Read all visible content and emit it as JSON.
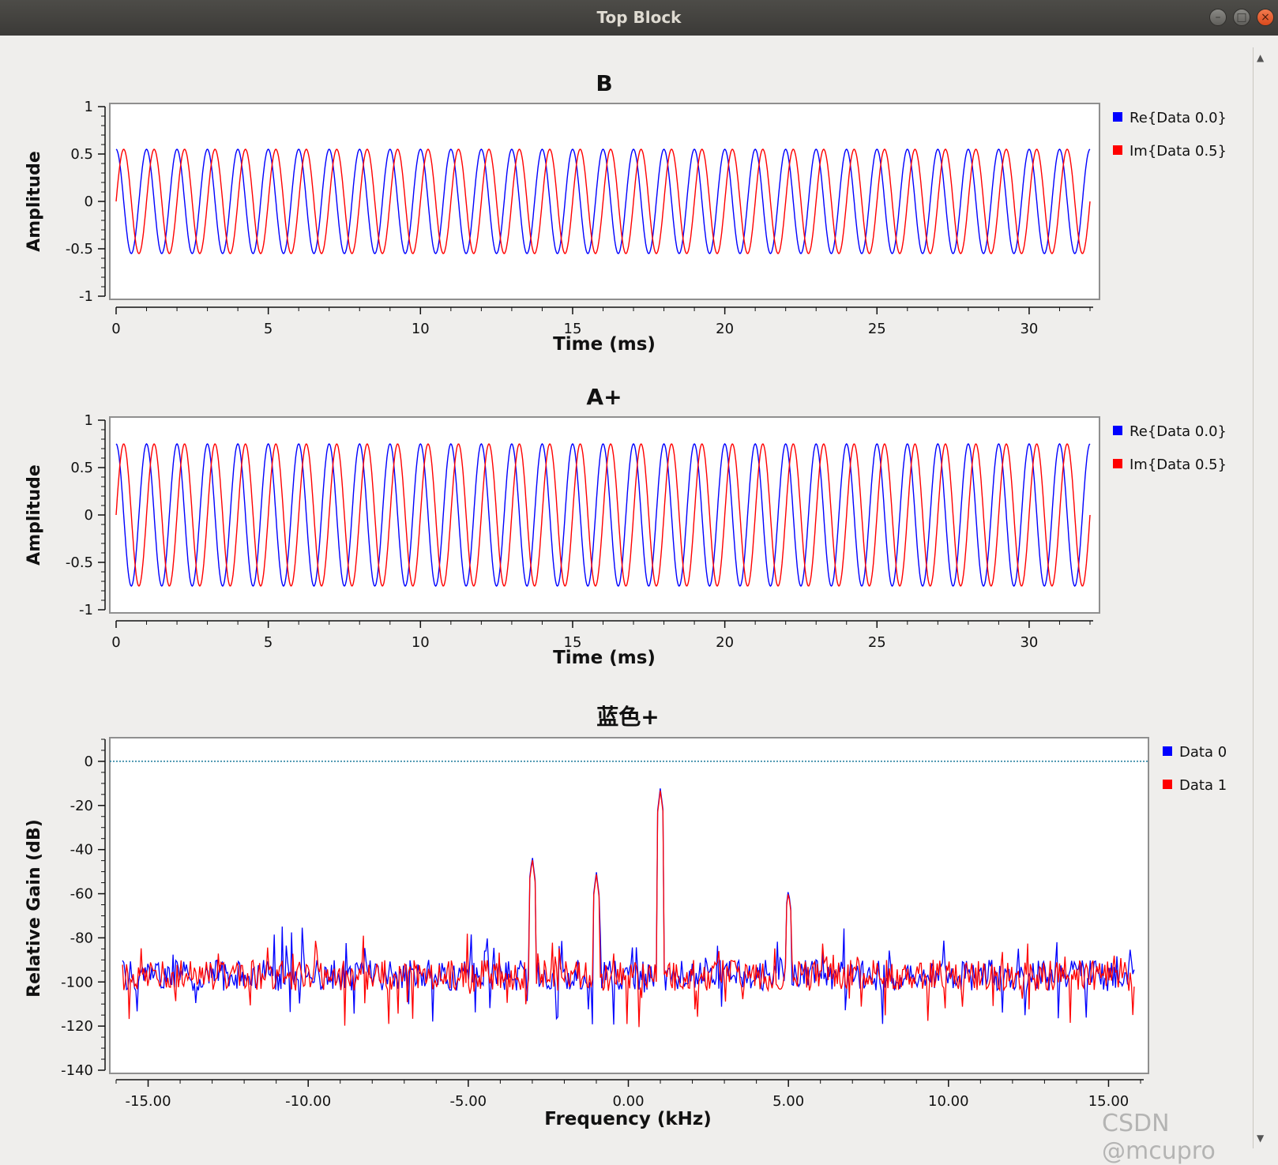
{
  "window": {
    "title": "Top Block"
  },
  "watermark": "CSDN @mcupro",
  "plots": [
    {
      "title": "B",
      "ylabel": "Amplitude",
      "xlabel": "Time (ms)",
      "yticks": [
        "1",
        "0.5",
        "0",
        "-0.5",
        "-1"
      ],
      "xticks": [
        "0",
        "5",
        "10",
        "15",
        "20",
        "25",
        "30"
      ],
      "legend": [
        "Re{Data 0.0}",
        "Im{Data 0.5}"
      ]
    },
    {
      "title": "A+",
      "ylabel": "Amplitude",
      "xlabel": "Time (ms)",
      "yticks": [
        "1",
        "0.5",
        "0",
        "-0.5",
        "-1"
      ],
      "xticks": [
        "0",
        "5",
        "10",
        "15",
        "20",
        "25",
        "30"
      ],
      "legend": [
        "Re{Data 0.0}",
        "Im{Data 0.5}"
      ]
    },
    {
      "title": "蓝色+",
      "ylabel": "Relative Gain (dB)",
      "xlabel": "Frequency (kHz)",
      "yticks": [
        "0",
        "-20",
        "-40",
        "-60",
        "-80",
        "-100",
        "-120",
        "-140"
      ],
      "xticks": [
        "-15.00",
        "-10.00",
        "-5.00",
        "0.00",
        "5.00",
        "10.00",
        "15.00"
      ],
      "legend": [
        "Data 0",
        "Data 1"
      ]
    }
  ],
  "chart_data": [
    {
      "type": "line",
      "title": "B",
      "xlabel": "Time (ms)",
      "ylabel": "Amplitude",
      "xlim": [
        0,
        32
      ],
      "ylim": [
        -1,
        1
      ],
      "grid": false,
      "legend_position": "right",
      "signal": {
        "frequency_khz": 1.0,
        "amplitude": 0.55
      },
      "series": [
        {
          "name": "Re{Data 0.0}",
          "color": "#0000ff",
          "kind": "cos",
          "phase_deg": 0
        },
        {
          "name": "Im{Data 0.5}",
          "color": "#ff0000",
          "kind": "sin",
          "phase_deg": 0
        }
      ]
    },
    {
      "type": "line",
      "title": "A+",
      "xlabel": "Time (ms)",
      "ylabel": "Amplitude",
      "xlim": [
        0,
        32
      ],
      "ylim": [
        -1,
        1
      ],
      "grid": false,
      "legend_position": "right",
      "signal": {
        "frequency_khz": 1.0,
        "amplitude": 0.75
      },
      "series": [
        {
          "name": "Re{Data 0.0}",
          "color": "#0000ff",
          "kind": "cos",
          "phase_deg": 0
        },
        {
          "name": "Im{Data 0.5}",
          "color": "#ff0000",
          "kind": "sin",
          "phase_deg": 0
        }
      ]
    },
    {
      "type": "line",
      "title": "蓝色+",
      "xlabel": "Frequency (kHz)",
      "ylabel": "Relative Gain (dB)",
      "xlim": [
        -16,
        16
      ],
      "ylim": [
        -140,
        10
      ],
      "grid": false,
      "legend_position": "right",
      "reference_line_db": 0,
      "noise_floor_db": -97,
      "peaks": [
        {
          "freq_khz": -3.0,
          "db": -43
        },
        {
          "freq_khz": -1.0,
          "db": -50
        },
        {
          "freq_khz": 1.0,
          "db": -12
        },
        {
          "freq_khz": 5.0,
          "db": -58
        }
      ],
      "series": [
        {
          "name": "Data 0",
          "color": "#0000ff"
        },
        {
          "name": "Data 1",
          "color": "#ff0000"
        }
      ]
    }
  ]
}
